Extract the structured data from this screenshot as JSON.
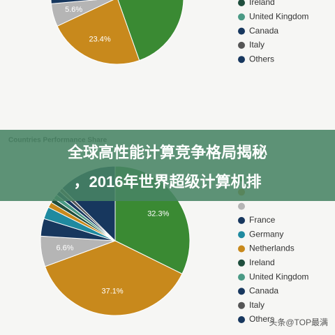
{
  "chart_data": [
    {
      "type": "pie",
      "categories": [
        null,
        null,
        null,
        null,
        null,
        null,
        "Ireland",
        "United Kingdom",
        "Canada",
        "Italy",
        "Others"
      ],
      "values": [
        44.6,
        23.4,
        5.6,
        3.1,
        2.4,
        1.5,
        1.2,
        1.1,
        1.0,
        0.9,
        15.2
      ],
      "value_labels": [
        null,
        "23.4%",
        "5.6%",
        null,
        null,
        null,
        null,
        null,
        null,
        null,
        null
      ],
      "colors": [
        "#3a8a33",
        "#c8891c",
        "#b5b5b5",
        "#17375e",
        "#1f8aa0",
        "#c8891c",
        "#1f4e3d",
        "#4a9a85",
        "#17375e",
        "#555555",
        "#17375e"
      ]
    },
    {
      "type": "pie",
      "title": "Countries Performance Share",
      "categories": [
        null,
        null,
        null,
        "France",
        "Germany",
        "Netherlands",
        "Ireland",
        "United Kingdom",
        "Canada",
        "Italy",
        "Others"
      ],
      "values": [
        32.3,
        37.1,
        6.6,
        3.8,
        2.6,
        1.2,
        1.0,
        1.0,
        1.0,
        0.8,
        12.6
      ],
      "value_labels": [
        "32.3%",
        "37.1%",
        "6.6%",
        null,
        null,
        null,
        null,
        null,
        null,
        null,
        null
      ],
      "colors": [
        "#3a8a33",
        "#c8891c",
        "#b5b5b5",
        "#17375e",
        "#1f8aa0",
        "#c8891c",
        "#1f4e3d",
        "#4a9a85",
        "#17375e",
        "#555555",
        "#17375e"
      ]
    }
  ],
  "banner": {
    "lines": [
      "全球高性能计算竞争格局揭秘",
      "，2016年世界超级计算机排"
    ]
  },
  "watermark": "头条@TOP最满"
}
